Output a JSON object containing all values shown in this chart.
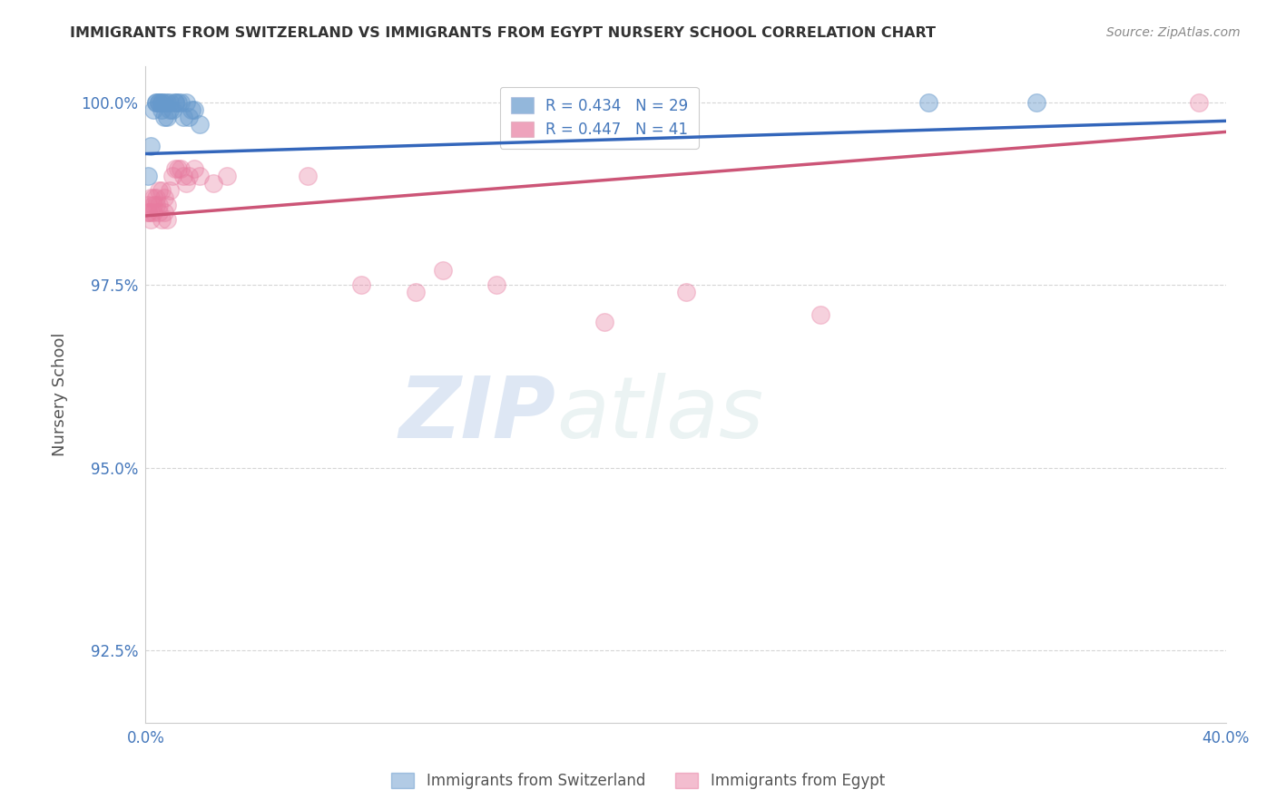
{
  "title": "IMMIGRANTS FROM SWITZERLAND VS IMMIGRANTS FROM EGYPT NURSERY SCHOOL CORRELATION CHART",
  "source": "Source: ZipAtlas.com",
  "xlabel": "",
  "ylabel": "Nursery School",
  "xlim": [
    0.0,
    0.4
  ],
  "ylim": [
    0.915,
    1.005
  ],
  "xticks": [
    0.0,
    0.1,
    0.2,
    0.3,
    0.4
  ],
  "xtick_labels": [
    "0.0%",
    "",
    "",
    "",
    "40.0%"
  ],
  "yticks": [
    0.925,
    0.95,
    0.975,
    1.0
  ],
  "ytick_labels": [
    "92.5%",
    "95.0%",
    "97.5%",
    "100.0%"
  ],
  "blue_color": "#6699cc",
  "pink_color": "#e87ca0",
  "blue_line_color": "#3366bb",
  "pink_line_color": "#cc5577",
  "legend_blue_R": "R = 0.434",
  "legend_blue_N": "N = 29",
  "legend_pink_R": "R = 0.447",
  "legend_pink_N": "N = 41",
  "watermark_zip": "ZIP",
  "watermark_atlas": "atlas",
  "background_color": "#ffffff",
  "grid_color": "#cccccc",
  "axis_label_color": "#4477bb",
  "title_color": "#333333",
  "blue_scatter_x": [
    0.001,
    0.002,
    0.003,
    0.004,
    0.004,
    0.005,
    0.005,
    0.006,
    0.006,
    0.006,
    0.007,
    0.007,
    0.008,
    0.008,
    0.009,
    0.009,
    0.01,
    0.011,
    0.011,
    0.012,
    0.013,
    0.014,
    0.015,
    0.016,
    0.017,
    0.018,
    0.02,
    0.29,
    0.33
  ],
  "blue_scatter_y": [
    0.99,
    0.994,
    0.999,
    1.0,
    1.0,
    1.0,
    1.0,
    1.0,
    1.0,
    0.999,
    0.998,
    1.0,
    1.0,
    0.998,
    1.0,
    0.999,
    0.999,
    1.0,
    1.0,
    1.0,
    1.0,
    0.998,
    1.0,
    0.998,
    0.999,
    0.999,
    0.997,
    1.0,
    1.0
  ],
  "pink_scatter_x": [
    0.001,
    0.001,
    0.001,
    0.002,
    0.002,
    0.002,
    0.003,
    0.003,
    0.003,
    0.004,
    0.004,
    0.005,
    0.005,
    0.005,
    0.006,
    0.006,
    0.007,
    0.007,
    0.008,
    0.008,
    0.009,
    0.01,
    0.011,
    0.012,
    0.013,
    0.014,
    0.015,
    0.016,
    0.018,
    0.02,
    0.025,
    0.03,
    0.06,
    0.08,
    0.1,
    0.11,
    0.13,
    0.17,
    0.2,
    0.25,
    0.39
  ],
  "pink_scatter_y": [
    0.985,
    0.985,
    0.986,
    0.987,
    0.984,
    0.985,
    0.987,
    0.986,
    0.985,
    0.987,
    0.986,
    0.988,
    0.986,
    0.985,
    0.988,
    0.984,
    0.987,
    0.985,
    0.986,
    0.984,
    0.988,
    0.99,
    0.991,
    0.991,
    0.991,
    0.99,
    0.989,
    0.99,
    0.991,
    0.99,
    0.989,
    0.99,
    0.99,
    0.975,
    0.974,
    0.977,
    0.975,
    0.97,
    0.974,
    0.971,
    1.0
  ],
  "blue_trendline_x": [
    0.0,
    0.4
  ],
  "blue_trendline_y": [
    0.993,
    0.9975
  ],
  "pink_trendline_x": [
    0.0,
    0.4
  ],
  "pink_trendline_y": [
    0.9845,
    0.996
  ]
}
